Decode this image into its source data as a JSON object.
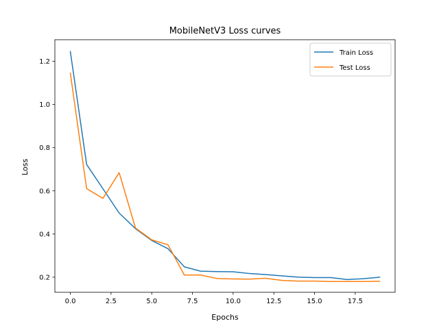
{
  "chart_data": {
    "type": "line",
    "title": "MobileNetV3 Loss curves",
    "xlabel": "Epochs",
    "ylabel": "Loss",
    "xlim": [
      -0.95,
      19.95
    ],
    "ylim": [
      0.13,
      1.3
    ],
    "xticks": [
      0,
      2.5,
      5,
      7.5,
      10,
      12.5,
      15,
      17.5
    ],
    "xtick_labels": [
      "0.0",
      "2.5",
      "5.0",
      "7.5",
      "10.0",
      "12.5",
      "15.0",
      "17.5"
    ],
    "yticks": [
      0.2,
      0.4,
      0.6,
      0.8,
      1.0,
      1.2
    ],
    "ytick_labels": [
      "0.2",
      "0.4",
      "0.6",
      "0.8",
      "1.0",
      "1.2"
    ],
    "grid": false,
    "legend_position": "top-right",
    "x": [
      0,
      1,
      2,
      3,
      4,
      5,
      6,
      7,
      8,
      9,
      10,
      11,
      12,
      13,
      14,
      15,
      16,
      17,
      18,
      19
    ],
    "series": [
      {
        "name": "Train Loss",
        "color": "#1f77b4",
        "values": [
          1.245,
          0.722,
          0.61,
          0.497,
          0.425,
          0.37,
          0.332,
          0.248,
          0.228,
          0.226,
          0.225,
          0.217,
          0.212,
          0.206,
          0.2,
          0.198,
          0.198,
          0.189,
          0.193,
          0.2
        ]
      },
      {
        "name": "Test Loss",
        "color": "#ff7f0e",
        "values": [
          1.145,
          0.61,
          0.565,
          0.684,
          0.428,
          0.373,
          0.35,
          0.21,
          0.21,
          0.194,
          0.192,
          0.191,
          0.195,
          0.185,
          0.182,
          0.182,
          0.18,
          0.18,
          0.18,
          0.181
        ]
      }
    ]
  }
}
